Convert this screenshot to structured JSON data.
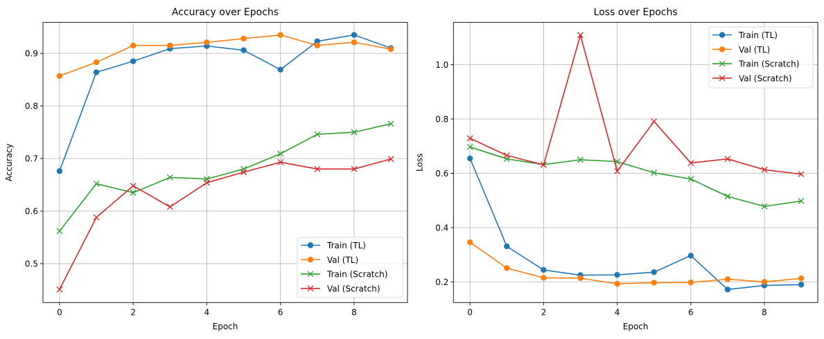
{
  "chart_data": [
    {
      "type": "line",
      "title": "Accuracy over Epochs",
      "xlabel": "Epoch",
      "ylabel": "Accuracy",
      "xlim": [
        -0.45,
        9.45
      ],
      "ylim": [
        0.426,
        0.959
      ],
      "xticks": [
        0,
        2,
        4,
        6,
        8
      ],
      "yticks": [
        0.5,
        0.6,
        0.7,
        0.8,
        0.9
      ],
      "ytick_labels": [
        "0.5",
        "0.6",
        "0.7",
        "0.8",
        "0.9"
      ],
      "grid": true,
      "legend_position": "lower-right",
      "x": [
        0,
        1,
        2,
        3,
        4,
        5,
        6,
        7,
        8,
        9
      ],
      "series": [
        {
          "name": "Train (TL)",
          "color": "#1f77b4",
          "marker": "circle",
          "values": [
            0.676,
            0.864,
            0.885,
            0.909,
            0.914,
            0.906,
            0.869,
            0.923,
            0.935,
            0.91
          ]
        },
        {
          "name": "Val (TL)",
          "color": "#ff7f0e",
          "marker": "circle",
          "values": [
            0.857,
            0.883,
            0.915,
            0.915,
            0.921,
            0.928,
            0.935,
            0.915,
            0.921,
            0.908
          ]
        },
        {
          "name": "Train (Scratch)",
          "color": "#2ca02c",
          "marker": "x",
          "values": [
            0.562,
            0.652,
            0.635,
            0.664,
            0.661,
            0.68,
            0.709,
            0.746,
            0.75,
            0.766
          ]
        },
        {
          "name": "Val (Scratch)",
          "color": "#d62728",
          "marker": "x",
          "values": [
            0.451,
            0.588,
            0.648,
            0.608,
            0.654,
            0.674,
            0.693,
            0.68,
            0.68,
            0.699
          ]
        }
      ]
    },
    {
      "type": "line",
      "title": "Loss over Epochs",
      "xlabel": "Epoch",
      "ylabel": "Loss",
      "xlim": [
        -0.45,
        9.45
      ],
      "ylim": [
        0.124,
        1.156
      ],
      "xticks": [
        0,
        2,
        4,
        6,
        8
      ],
      "yticks": [
        0.2,
        0.4,
        0.6,
        0.8,
        1.0
      ],
      "ytick_labels": [
        "0.2",
        "0.4",
        "0.6",
        "0.8",
        "1.0"
      ],
      "grid": true,
      "legend_position": "upper-right",
      "x": [
        0,
        1,
        2,
        3,
        4,
        5,
        6,
        7,
        8,
        9
      ],
      "series": [
        {
          "name": "Train (TL)",
          "color": "#1f77b4",
          "marker": "circle",
          "values": [
            0.655,
            0.331,
            0.244,
            0.225,
            0.226,
            0.236,
            0.297,
            0.172,
            0.187,
            0.19
          ]
        },
        {
          "name": "Val (TL)",
          "color": "#ff7f0e",
          "marker": "circle",
          "values": [
            0.346,
            0.251,
            0.215,
            0.214,
            0.193,
            0.197,
            0.198,
            0.21,
            0.2,
            0.213
          ]
        },
        {
          "name": "Train (Scratch)",
          "color": "#2ca02c",
          "marker": "x",
          "values": [
            0.697,
            0.653,
            0.632,
            0.65,
            0.643,
            0.602,
            0.579,
            0.515,
            0.478,
            0.498
          ]
        },
        {
          "name": "Val (Scratch)",
          "color": "#d62728",
          "marker": "x",
          "values": [
            0.729,
            0.666,
            0.631,
            1.109,
            0.608,
            0.791,
            0.638,
            0.653,
            0.613,
            0.597
          ]
        }
      ]
    }
  ]
}
